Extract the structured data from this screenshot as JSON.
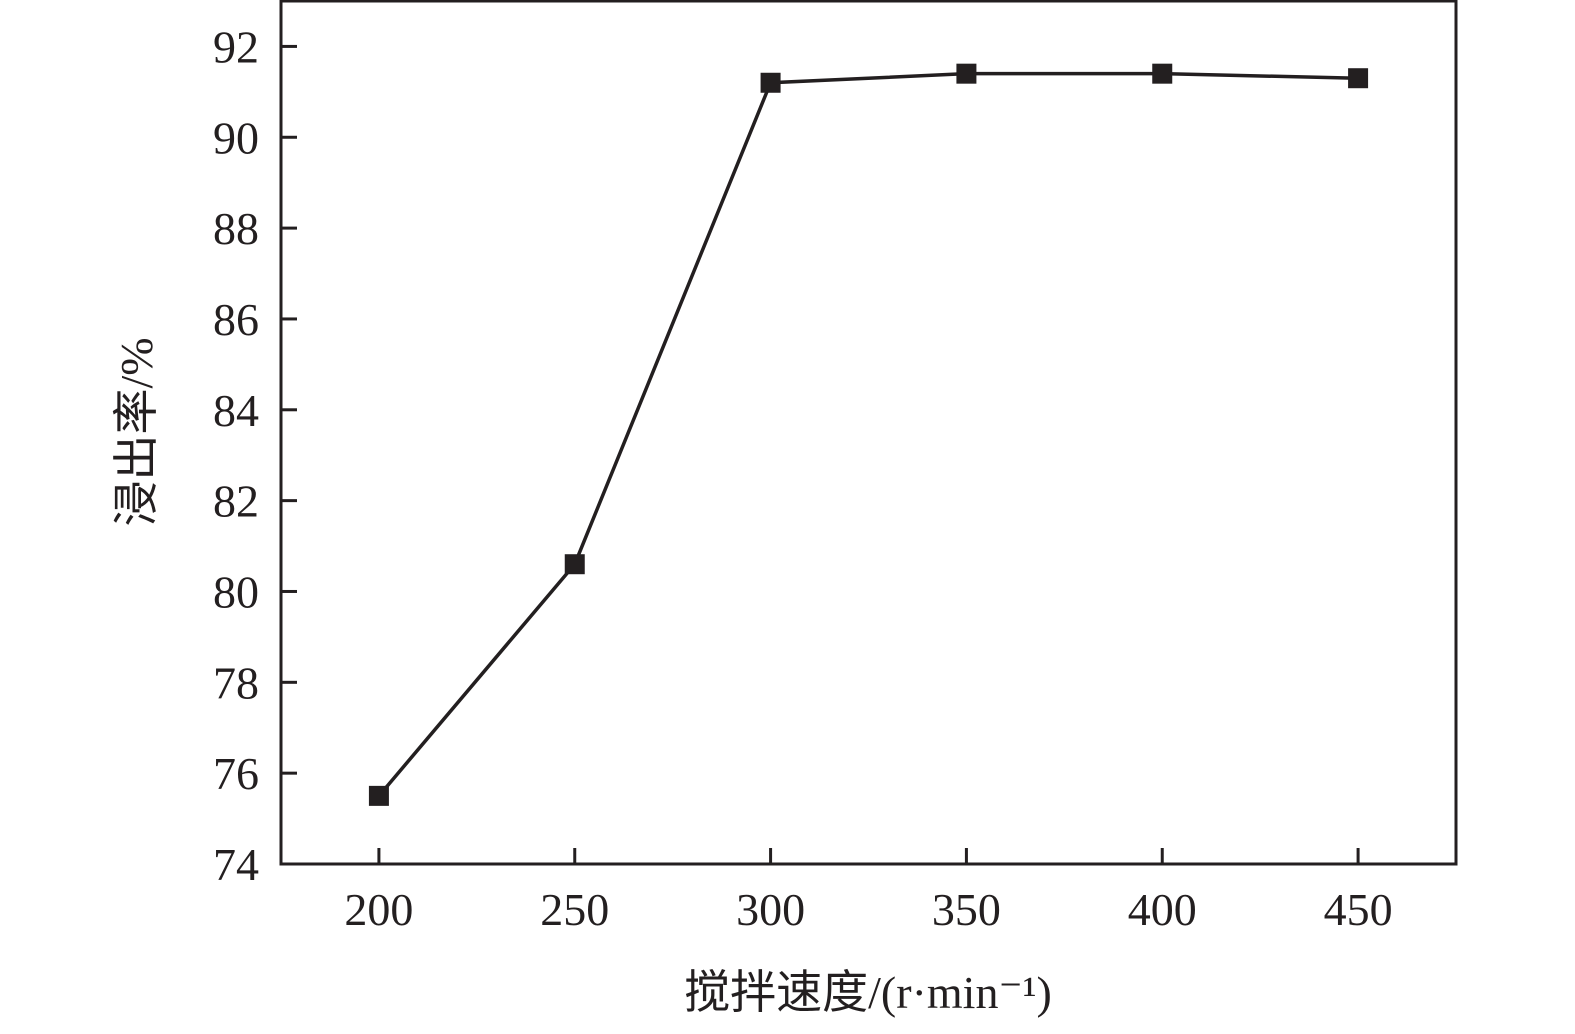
{
  "chart_data": {
    "type": "line",
    "title": "",
    "xlabel": "搅拌速度/(r·min⁻¹)",
    "ylabel": "浸出率/%",
    "x": [
      200,
      250,
      300,
      350,
      400,
      450
    ],
    "series": [
      {
        "values": [
          75.5,
          80.6,
          91.2,
          91.4,
          91.4,
          91.3
        ],
        "marker": "square",
        "color": "#231f20"
      }
    ],
    "xlim": [
      175,
      475
    ],
    "ylim": [
      74,
      93
    ],
    "xticks": [
      200,
      250,
      300,
      350,
      400,
      450
    ],
    "yticks": [
      74,
      76,
      78,
      80,
      82,
      84,
      86,
      88,
      90,
      92
    ],
    "grid": false,
    "legend": "none"
  }
}
